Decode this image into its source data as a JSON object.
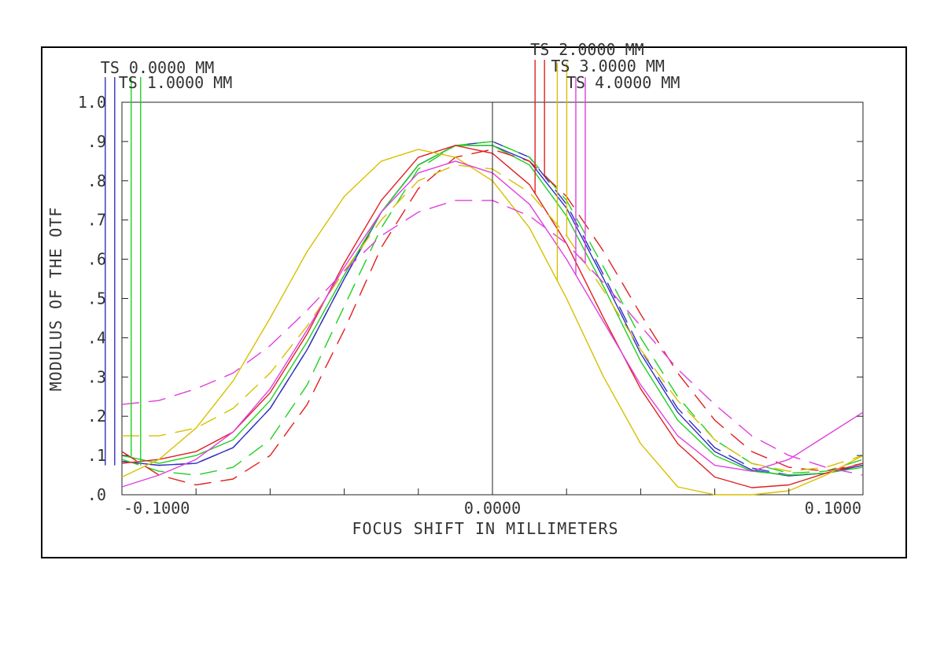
{
  "chart_data": {
    "type": "line",
    "title": "",
    "xlabel": "FOCUS SHIFT IN MILLIMETERS",
    "ylabel": "MODULUS OF THE OTF",
    "xlim": [
      -0.1,
      0.1
    ],
    "ylim": [
      0.0,
      1.0
    ],
    "x_tick_labels": [
      "-0.1000",
      "0.0000",
      "0.1000"
    ],
    "y_tick_labels": [
      ".0",
      ".1",
      ".2",
      ".3",
      ".4",
      ".5",
      ".6",
      ".7",
      ".8",
      ".9",
      "1.0"
    ],
    "legend": [
      {
        "label": "TS 0.0000 MM",
        "colors": [
          "#3030c0",
          "#3030c0"
        ],
        "x": -0.1045
      },
      {
        "label": "TS 1.0000 MM",
        "colors": [
          "#20d020",
          "#20d020"
        ],
        "x": -0.0975
      },
      {
        "label": "TS 2.0000 MM",
        "colors": [
          "#e02020",
          "#e02020"
        ],
        "x": 0.0115
      },
      {
        "label": "TS 3.0000 MM",
        "colors": [
          "#d8c000",
          "#d8c000"
        ],
        "x": 0.0175
      },
      {
        "label": "TS 4.0000 MM",
        "colors": [
          "#e040e0",
          "#e040e0"
        ],
        "x": 0.0225
      }
    ],
    "series": [
      {
        "name": "TS 0.0000 MM",
        "color": "#3030c0",
        "dash": false,
        "x": [
          -0.1,
          -0.09,
          -0.08,
          -0.07,
          -0.06,
          -0.05,
          -0.04,
          -0.03,
          -0.02,
          -0.01,
          0.0,
          0.01,
          0.02,
          0.03,
          0.04,
          0.05,
          0.06,
          0.07,
          0.08,
          0.09,
          0.1
        ],
        "y": [
          0.085,
          0.075,
          0.08,
          0.12,
          0.22,
          0.37,
          0.55,
          0.72,
          0.84,
          0.89,
          0.89,
          0.85,
          0.73,
          0.55,
          0.36,
          0.21,
          0.11,
          0.063,
          0.048,
          0.055,
          0.075
        ]
      },
      {
        "name": "TS 0.0000 MM",
        "color": "#3030c0",
        "dash": true,
        "x": [
          -0.1,
          -0.09,
          -0.08,
          -0.07,
          -0.06,
          -0.05,
          -0.04,
          -0.03,
          -0.02,
          -0.01,
          0.0,
          0.01,
          0.02,
          0.03,
          0.04,
          0.05,
          0.06,
          0.07,
          0.08,
          0.09,
          0.1
        ],
        "y": [
          0.085,
          0.075,
          0.08,
          0.12,
          0.22,
          0.37,
          0.55,
          0.72,
          0.84,
          0.89,
          0.9,
          0.86,
          0.74,
          0.56,
          0.37,
          0.22,
          0.12,
          0.068,
          0.05,
          0.055,
          0.075
        ]
      },
      {
        "name": "TS 1.0000 MM",
        "color": "#20d020",
        "dash": false,
        "x": [
          -0.1,
          -0.09,
          -0.08,
          -0.07,
          -0.06,
          -0.05,
          -0.04,
          -0.03,
          -0.02,
          -0.01,
          0.0,
          0.01,
          0.02,
          0.03,
          0.04,
          0.05,
          0.06,
          0.07,
          0.08,
          0.09,
          0.1
        ],
        "y": [
          0.1,
          0.08,
          0.1,
          0.14,
          0.24,
          0.39,
          0.56,
          0.72,
          0.84,
          0.89,
          0.89,
          0.84,
          0.71,
          0.53,
          0.34,
          0.19,
          0.1,
          0.06,
          0.05,
          0.055,
          0.07
        ]
      },
      {
        "name": "TS 1.0000 MM",
        "color": "#20d020",
        "dash": true,
        "x": [
          -0.1,
          -0.09,
          -0.08,
          -0.07,
          -0.06,
          -0.05,
          -0.04,
          -0.03,
          -0.02,
          -0.01,
          0.0,
          0.01,
          0.02,
          0.03,
          0.04,
          0.05,
          0.06,
          0.07,
          0.08,
          0.09,
          0.1
        ],
        "y": [
          0.09,
          0.06,
          0.05,
          0.07,
          0.14,
          0.28,
          0.48,
          0.68,
          0.83,
          0.89,
          0.9,
          0.86,
          0.75,
          0.58,
          0.4,
          0.25,
          0.14,
          0.08,
          0.055,
          0.06,
          0.09
        ]
      },
      {
        "name": "TS 2.0000 MM",
        "color": "#e02020",
        "dash": false,
        "x": [
          -0.1,
          -0.09,
          -0.08,
          -0.07,
          -0.06,
          -0.05,
          -0.04,
          -0.03,
          -0.02,
          -0.01,
          0.0,
          0.01,
          0.02,
          0.03,
          0.04,
          0.05,
          0.06,
          0.07,
          0.08,
          0.09,
          0.1
        ],
        "y": [
          0.08,
          0.09,
          0.11,
          0.16,
          0.26,
          0.41,
          0.59,
          0.75,
          0.86,
          0.89,
          0.87,
          0.79,
          0.64,
          0.45,
          0.27,
          0.13,
          0.045,
          0.018,
          0.025,
          0.055,
          0.08
        ]
      },
      {
        "name": "TS 2.0000 MM",
        "color": "#e02020",
        "dash": true,
        "x": [
          -0.1,
          -0.09,
          -0.08,
          -0.07,
          -0.06,
          -0.05,
          -0.04,
          -0.03,
          -0.02,
          -0.01,
          0.0,
          0.01,
          0.02,
          0.03,
          0.04,
          0.05,
          0.06,
          0.07,
          0.08,
          0.09,
          0.1
        ],
        "y": [
          0.11,
          0.05,
          0.025,
          0.04,
          0.1,
          0.23,
          0.42,
          0.63,
          0.78,
          0.86,
          0.88,
          0.85,
          0.76,
          0.62,
          0.46,
          0.31,
          0.19,
          0.11,
          0.07,
          0.06,
          0.08
        ]
      },
      {
        "name": "TS 3.0000 MM",
        "color": "#d8c000",
        "dash": false,
        "x": [
          -0.1,
          -0.09,
          -0.08,
          -0.07,
          -0.06,
          -0.05,
          -0.04,
          -0.03,
          -0.02,
          -0.01,
          0.0,
          0.01,
          0.02,
          0.03,
          0.04,
          0.05,
          0.06,
          0.07,
          0.08,
          0.09,
          0.1
        ],
        "y": [
          0.045,
          0.09,
          0.17,
          0.29,
          0.45,
          0.62,
          0.76,
          0.85,
          0.88,
          0.86,
          0.8,
          0.68,
          0.5,
          0.3,
          0.13,
          0.02,
          -0.03,
          -0.02,
          0.01,
          0.05,
          0.1
        ]
      },
      {
        "name": "TS 3.0000 MM",
        "color": "#d8c000",
        "dash": true,
        "x": [
          -0.1,
          -0.09,
          -0.08,
          -0.07,
          -0.06,
          -0.05,
          -0.04,
          -0.03,
          -0.02,
          -0.01,
          0.0,
          0.01,
          0.02,
          0.03,
          0.04,
          0.05,
          0.06,
          0.07,
          0.08,
          0.09,
          0.1
        ],
        "y": [
          0.15,
          0.15,
          0.17,
          0.22,
          0.31,
          0.43,
          0.57,
          0.7,
          0.8,
          0.84,
          0.83,
          0.77,
          0.66,
          0.52,
          0.37,
          0.24,
          0.14,
          0.08,
          0.06,
          0.07,
          0.1
        ]
      },
      {
        "name": "TS 4.0000 MM",
        "color": "#e040e0",
        "dash": false,
        "x": [
          -0.1,
          -0.09,
          -0.08,
          -0.07,
          -0.06,
          -0.05,
          -0.04,
          -0.03,
          -0.02,
          -0.01,
          0.0,
          0.01,
          0.02,
          0.03,
          0.04,
          0.05,
          0.06,
          0.07,
          0.08,
          0.09,
          0.1
        ],
        "y": [
          0.02,
          0.05,
          0.09,
          0.16,
          0.27,
          0.42,
          0.58,
          0.72,
          0.82,
          0.85,
          0.82,
          0.74,
          0.6,
          0.44,
          0.28,
          0.15,
          0.075,
          0.06,
          0.09,
          0.15,
          0.21
        ]
      },
      {
        "name": "TS 4.0000 MM",
        "color": "#e040e0",
        "dash": true,
        "x": [
          -0.1,
          -0.09,
          -0.08,
          -0.07,
          -0.06,
          -0.05,
          -0.04,
          -0.03,
          -0.02,
          -0.01,
          0.0,
          0.01,
          0.02,
          0.03,
          0.04,
          0.05,
          0.06,
          0.07,
          0.08,
          0.09,
          0.1
        ],
        "y": [
          0.23,
          0.24,
          0.27,
          0.31,
          0.38,
          0.47,
          0.57,
          0.66,
          0.72,
          0.75,
          0.75,
          0.71,
          0.64,
          0.54,
          0.43,
          0.32,
          0.23,
          0.15,
          0.1,
          0.07,
          0.05
        ]
      }
    ],
    "grid": false,
    "legend_placement": "top"
  }
}
